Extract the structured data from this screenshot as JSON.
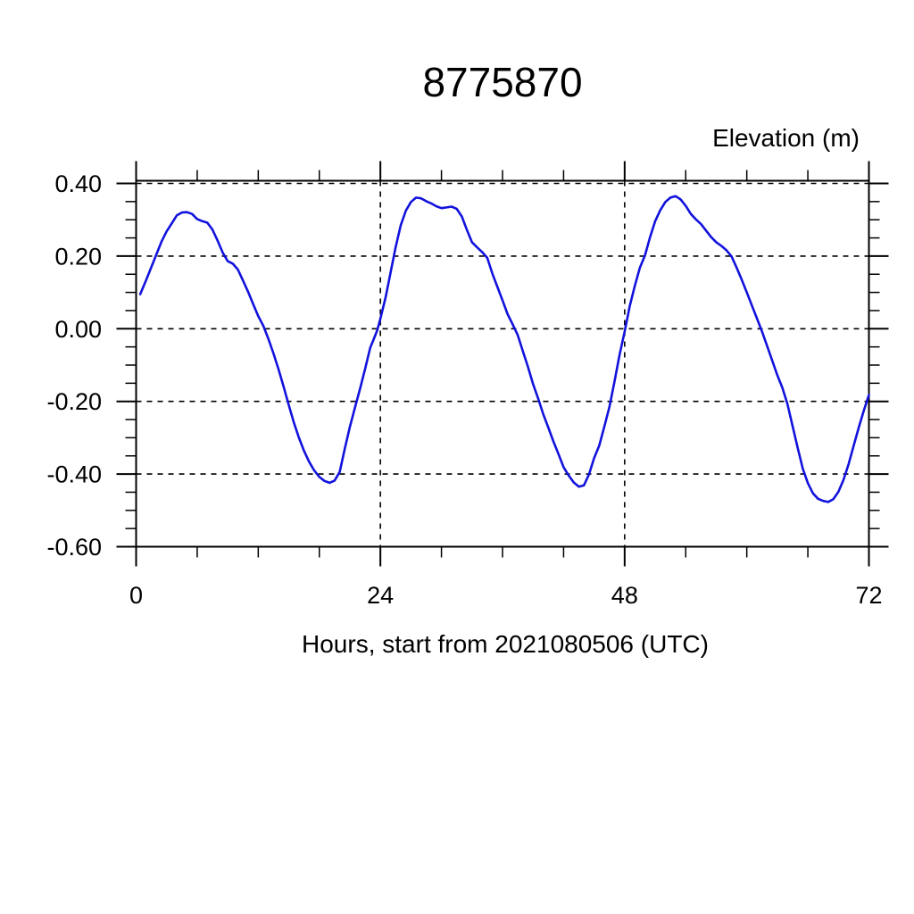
{
  "title": "8775870",
  "y_axis_label": "Elevation (m)",
  "x_axis_label": "Hours, start from 2021080506 (UTC)",
  "colors": {
    "background": "#ffffff",
    "frame": "#000000",
    "grid": "#000000",
    "text": "#000000",
    "line": "#1212dd"
  },
  "chart_data": {
    "type": "line",
    "title": "8775870",
    "xlabel": "Hours, start from 2021080506 (UTC)",
    "ylabel": "Elevation (m)",
    "xlim": [
      0,
      72
    ],
    "ylim": [
      -0.6,
      0.4
    ],
    "xticks_major": [
      0,
      24,
      48,
      72
    ],
    "xtick_labels": [
      "0",
      "24",
      "48",
      "72"
    ],
    "xtick_minor_step": 6,
    "yticks_major": [
      0.4,
      0.2,
      0.0,
      -0.2,
      -0.4,
      -0.6
    ],
    "ytick_labels": [
      "0.40",
      "0.20",
      "0.00",
      "-0.20",
      "-0.40",
      "-0.60"
    ],
    "ytick_minor_step": 0.05,
    "grid_horizontal_at": [
      0.4,
      0.2,
      0.0,
      -0.2,
      -0.4,
      -0.6
    ],
    "grid_vertical_at": [
      24,
      48
    ],
    "grid_style": "dashed",
    "legend": null,
    "series": [
      {
        "name": "elevation",
        "color": "#1212dd",
        "x": [
          0.4,
          1,
          1.5,
          2,
          2.5,
          3,
          3.5,
          4,
          4.5,
          5,
          5.5,
          6,
          6.5,
          7,
          7.5,
          8,
          8.5,
          9,
          9.5,
          10,
          10.5,
          11,
          11.5,
          12,
          12.5,
          13,
          13.5,
          14,
          14.5,
          15,
          15.5,
          16,
          16.5,
          17,
          17.5,
          18,
          18.5,
          19,
          19.5,
          20,
          20.5,
          21,
          21.5,
          22,
          22.5,
          23,
          23.3,
          23.7,
          24,
          24.5,
          25,
          25.5,
          26,
          26.5,
          27,
          27.5,
          28,
          28.5,
          29,
          29.5,
          30,
          30.5,
          31,
          31.5,
          32,
          32.5,
          33,
          33.5,
          34,
          34.5,
          35,
          35.5,
          36,
          36.5,
          37,
          37.5,
          38,
          38.5,
          39,
          39.5,
          40,
          40.5,
          41,
          41.5,
          42,
          42.5,
          43,
          43.5,
          44,
          44.5,
          45,
          45.5,
          46,
          46.5,
          47,
          47.5,
          48,
          48.5,
          49,
          49.5,
          50,
          50.5,
          51,
          51.5,
          52,
          52.5,
          53,
          53.5,
          54,
          54.5,
          55,
          55.5,
          56,
          56.5,
          57,
          57.5,
          58,
          58.5,
          59,
          59.5,
          60,
          60.5,
          61,
          61.5,
          62,
          62.5,
          63,
          63.5,
          64,
          64.5,
          65,
          65.5,
          66,
          66.5,
          67,
          67.5,
          68,
          68.5,
          69,
          69.5,
          70,
          70.5,
          71,
          71.5,
          72
        ],
        "y": [
          0.095,
          0.135,
          0.17,
          0.205,
          0.24,
          0.268,
          0.29,
          0.312,
          0.32,
          0.321,
          0.316,
          0.302,
          0.296,
          0.292,
          0.273,
          0.243,
          0.21,
          0.186,
          0.179,
          0.163,
          0.133,
          0.102,
          0.068,
          0.035,
          0.008,
          -0.028,
          -0.068,
          -0.112,
          -0.16,
          -0.21,
          -0.258,
          -0.3,
          -0.336,
          -0.366,
          -0.39,
          -0.408,
          -0.419,
          -0.424,
          -0.418,
          -0.394,
          -0.33,
          -0.27,
          -0.217,
          -0.165,
          -0.11,
          -0.052,
          -0.032,
          -0.004,
          0.028,
          0.085,
          0.155,
          0.225,
          0.285,
          0.325,
          0.349,
          0.361,
          0.359,
          0.351,
          0.345,
          0.337,
          0.332,
          0.334,
          0.336,
          0.33,
          0.309,
          0.272,
          0.238,
          0.224,
          0.211,
          0.195,
          0.152,
          0.115,
          0.078,
          0.04,
          0.012,
          -0.018,
          -0.062,
          -0.105,
          -0.152,
          -0.192,
          -0.235,
          -0.272,
          -0.31,
          -0.345,
          -0.381,
          -0.404,
          -0.423,
          -0.435,
          -0.431,
          -0.401,
          -0.356,
          -0.322,
          -0.27,
          -0.216,
          -0.146,
          -0.072,
          -0.008,
          0.062,
          0.118,
          0.168,
          0.202,
          0.252,
          0.296,
          0.326,
          0.349,
          0.361,
          0.365,
          0.356,
          0.338,
          0.316,
          0.301,
          0.288,
          0.27,
          0.252,
          0.238,
          0.228,
          0.216,
          0.199,
          0.168,
          0.135,
          0.1,
          0.064,
          0.028,
          -0.008,
          -0.048,
          -0.088,
          -0.128,
          -0.163,
          -0.208,
          -0.268,
          -0.328,
          -0.385,
          -0.425,
          -0.453,
          -0.468,
          -0.474,
          -0.477,
          -0.469,
          -0.449,
          -0.416,
          -0.373,
          -0.322,
          -0.272,
          -0.225,
          -0.182
        ]
      }
    ]
  }
}
